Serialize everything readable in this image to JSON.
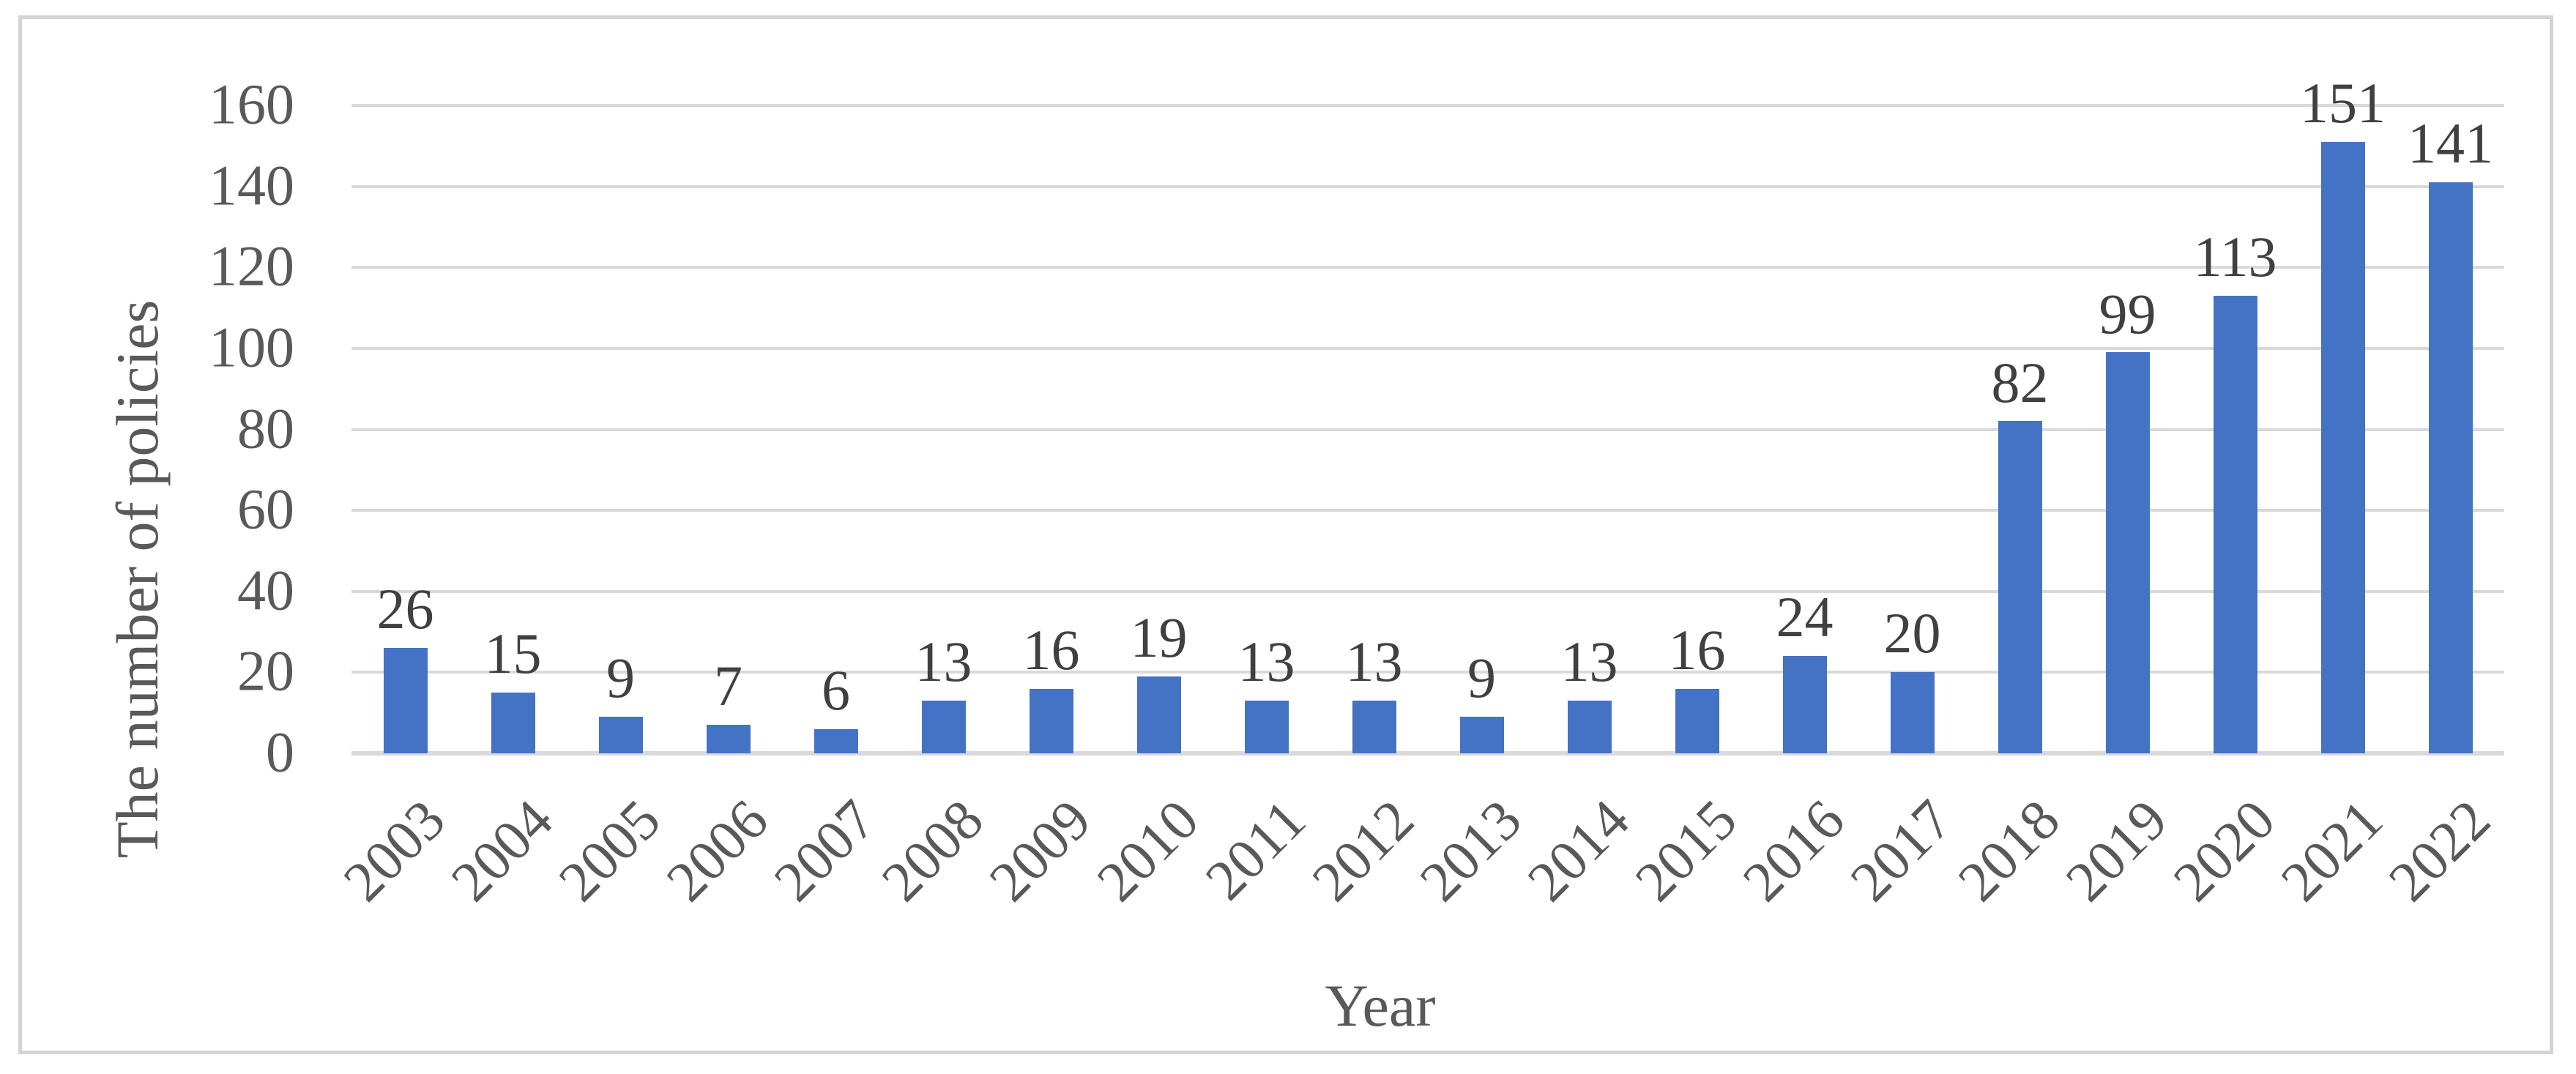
{
  "chart_data": {
    "type": "bar",
    "title": "",
    "xlabel": "Year",
    "ylabel": "The number of policies",
    "categories": [
      "2003",
      "2004",
      "2005",
      "2006",
      "2007",
      "2008",
      "2009",
      "2010",
      "2011",
      "2012",
      "2013",
      "2014",
      "2015",
      "2016",
      "2017",
      "2018",
      "2019",
      "2020",
      "2021",
      "2022"
    ],
    "values": [
      26,
      15,
      9,
      7,
      6,
      13,
      16,
      19,
      13,
      13,
      9,
      13,
      16,
      24,
      20,
      82,
      99,
      113,
      151,
      141
    ],
    "ylim": [
      0,
      160
    ],
    "yticks": [
      0,
      20,
      40,
      60,
      80,
      100,
      120,
      140,
      160
    ],
    "grid": "horizontal-on",
    "legend": "none",
    "data_labels": "outside-end",
    "x_tick_rotation_deg": 45,
    "colors": {
      "bar": "#4472c4",
      "gridline": "#d9d9d9",
      "axis_line": "#d9d9d9",
      "frame_border": "#d4d4d4",
      "tick_text": "#595959",
      "data_label_text": "#404040",
      "background": "#ffffff"
    }
  }
}
